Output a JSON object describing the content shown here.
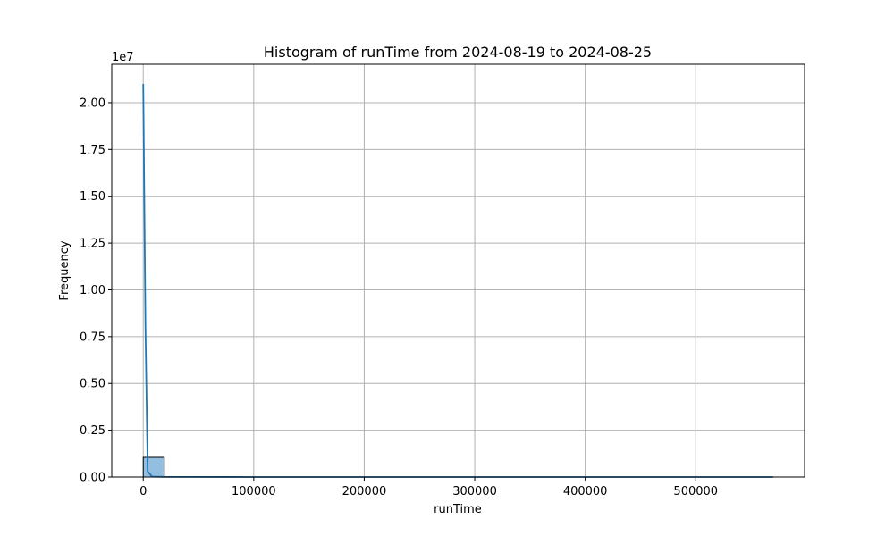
{
  "chart_data": {
    "type": "bar",
    "title": "Histogram of runTime from 2024-08-19 to 2024-08-25",
    "xlabel": "runTime",
    "ylabel": "Frequency",
    "y_offset_label": "1e7",
    "xlim": [
      -28500,
      598500
    ],
    "ylim": [
      0,
      22050000
    ],
    "x_ticks": [
      0,
      100000,
      200000,
      300000,
      400000,
      500000
    ],
    "x_tick_labels": [
      "0",
      "100000",
      "200000",
      "300000",
      "400000",
      "500000"
    ],
    "y_ticks": [
      0,
      2500000,
      5000000,
      7500000,
      10000000,
      12500000,
      15000000,
      17500000,
      20000000
    ],
    "y_tick_labels": [
      "0.00",
      "0.25",
      "0.50",
      "0.75",
      "1.00",
      "1.25",
      "1.50",
      "1.75",
      "2.00"
    ],
    "grid": true,
    "bins": [
      {
        "x0": 0,
        "x1": 19000,
        "count": 1050000
      }
    ],
    "density_line": {
      "name": "",
      "x": [
        0,
        2000,
        4000,
        8000,
        20000,
        100000,
        300000,
        570000
      ],
      "y": [
        21000000,
        8000000,
        300000,
        20000,
        5000,
        1000,
        500,
        0
      ]
    },
    "colors": {
      "bar_fill": "#94bedf",
      "bar_edge": "#000000",
      "line": "#1f77b4",
      "grid": "#b0b0b0"
    }
  }
}
